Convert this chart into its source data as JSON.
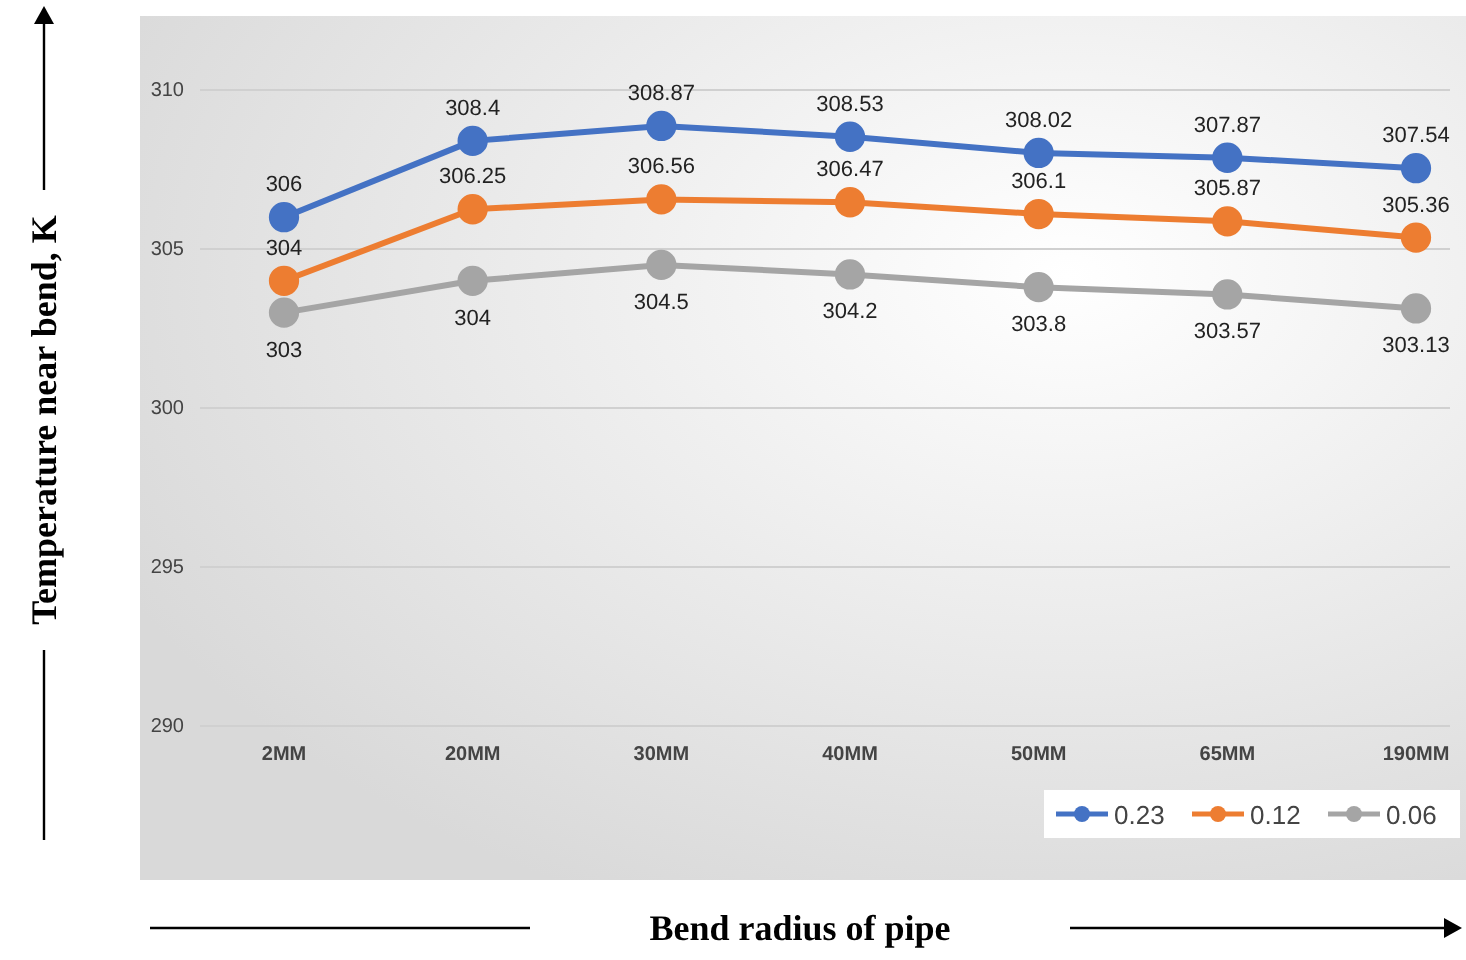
{
  "chart_data": {
    "type": "line",
    "xlabel": "Bend radius of pipe",
    "ylabel": "Temperature near bend, K",
    "categories": [
      "2MM",
      "20MM",
      "30MM",
      "40MM",
      "50MM",
      "65MM",
      "190MM"
    ],
    "series": [
      {
        "name": "0.23",
        "color": "#4472c4",
        "values": [
          306,
          308.4,
          308.87,
          308.53,
          308.02,
          307.87,
          307.54
        ]
      },
      {
        "name": "0.12",
        "color": "#ed7d31",
        "values": [
          304,
          306.25,
          306.56,
          306.47,
          306.1,
          305.87,
          305.36
        ]
      },
      {
        "name": "0.06",
        "color": "#a5a5a5",
        "values": [
          303,
          304,
          304.5,
          304.2,
          303.8,
          303.57,
          303.13
        ]
      }
    ],
    "ylim": [
      290,
      310
    ],
    "yticks": [
      290,
      295,
      300,
      305,
      310
    ],
    "grid": "y",
    "legend": "bottom right",
    "marker": "circle",
    "line_style": "solid",
    "data_labels": true
  }
}
